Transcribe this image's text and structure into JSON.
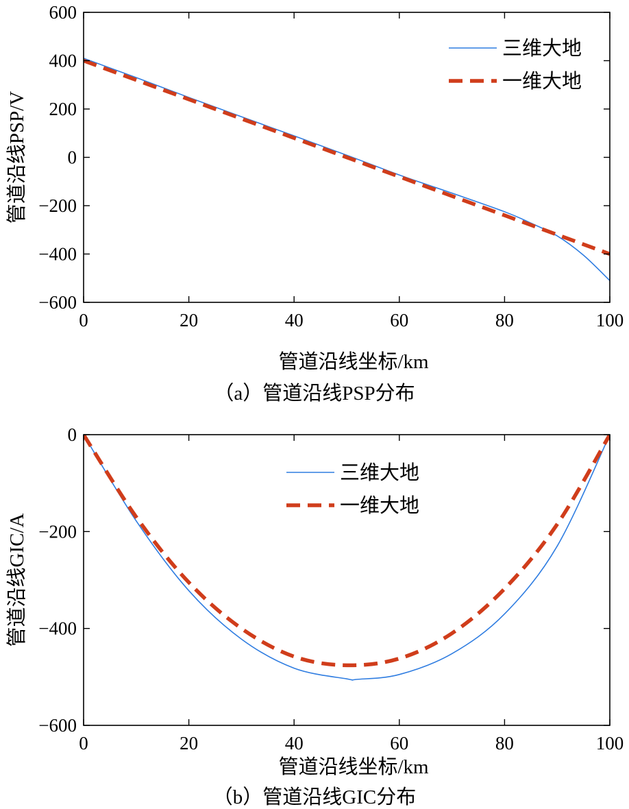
{
  "chart_data": [
    {
      "id": "a",
      "type": "line",
      "caption": "（a）管道沿线PSP分布",
      "xlabel": "管道沿线坐标/km",
      "ylabel": "管道沿线PSP/V",
      "xlim": [
        0,
        100
      ],
      "ylim": [
        -600,
        600
      ],
      "xticks": [
        0,
        20,
        40,
        60,
        80,
        100
      ],
      "yticks": [
        600,
        400,
        200,
        0,
        -200,
        -400,
        -600
      ],
      "ytick_labels": [
        "600",
        "400",
        "200",
        "0",
        "−200",
        "−400",
        "−600"
      ],
      "legend_position": "top-right",
      "series": [
        {
          "name": "三维大地",
          "style": "solid",
          "color": "#2f7de1",
          "x": [
            0,
            10,
            20,
            30,
            40,
            50,
            60,
            70,
            80,
            85,
            90,
            95,
            100
          ],
          "y": [
            410,
            330,
            248,
            168,
            89,
            9,
            -73,
            -148,
            -225,
            -272,
            -325,
            -405,
            -510
          ]
        },
        {
          "name": "一维大地",
          "style": "dashed",
          "color": "#d03d1b",
          "x": [
            0,
            10,
            20,
            30,
            40,
            50,
            60,
            70,
            80,
            90,
            100
          ],
          "y": [
            400,
            320,
            240,
            160,
            80,
            0,
            -80,
            -160,
            -240,
            -320,
            -400
          ]
        }
      ]
    },
    {
      "id": "b",
      "type": "line",
      "caption": "（b）管道沿线GIC分布",
      "xlabel": "管道沿线坐标/km",
      "ylabel": "管道沿线GIC/A",
      "xlim": [
        0,
        100
      ],
      "ylim": [
        -600,
        0
      ],
      "xticks": [
        0,
        20,
        40,
        60,
        80,
        100
      ],
      "yticks": [
        0,
        -200,
        -400,
        -600
      ],
      "ytick_labels": [
        "0",
        "−200",
        "−400",
        "−600"
      ],
      "legend_position": "top-center",
      "series": [
        {
          "name": "三维大地",
          "style": "solid",
          "color": "#2f7de1",
          "x": [
            0,
            10,
            20,
            30,
            40,
            50,
            52,
            60,
            70,
            80,
            90,
            100
          ],
          "y": [
            0,
            -178,
            -322,
            -422,
            -482,
            -504,
            -505,
            -495,
            -452,
            -370,
            -230,
            0
          ]
        },
        {
          "name": "一维大地",
          "style": "dashed",
          "color": "#d03d1b",
          "x": [
            0,
            10,
            20,
            30,
            40,
            50,
            60,
            70,
            80,
            90,
            100
          ],
          "y": [
            0,
            -170,
            -305,
            -400,
            -458,
            -476,
            -462,
            -410,
            -318,
            -185,
            0
          ]
        }
      ]
    }
  ]
}
